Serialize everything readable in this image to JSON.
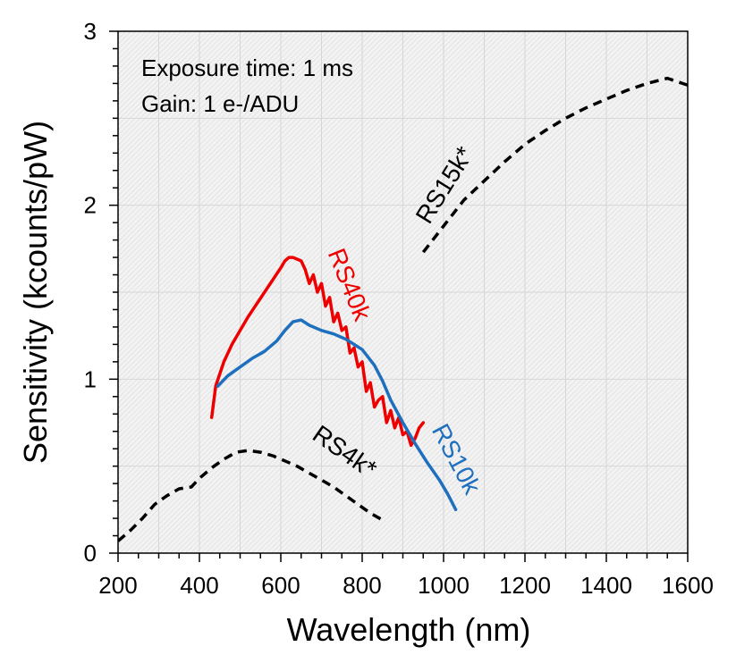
{
  "chart_data": {
    "type": "line",
    "title": "",
    "xlabel": "Wavelength (nm)",
    "ylabel": "Sensitivity (kcounts/pW)",
    "xlim": [
      200,
      1600
    ],
    "ylim": [
      0,
      3
    ],
    "xticks": [
      "200",
      "400",
      "600",
      "800",
      "1000",
      "1200",
      "1400",
      "1600"
    ],
    "yticks": [
      "0",
      "1",
      "2",
      "3"
    ],
    "grid": true,
    "annotations": [
      "Exposure time: 1 ms",
      "Gain: 1 e-/ADU"
    ],
    "series": [
      {
        "name": "RS40k",
        "label": "RS40k",
        "color": "#ee0000",
        "dash": "solid",
        "x": [
          430,
          440,
          460,
          480,
          500,
          520,
          540,
          560,
          580,
          600,
          610,
          620,
          630,
          640,
          650,
          660,
          670,
          680,
          690,
          700,
          710,
          720,
          730,
          740,
          750,
          760,
          770,
          780,
          790,
          800,
          810,
          820,
          830,
          840,
          850,
          860,
          870,
          880,
          890,
          900,
          910,
          920,
          930,
          940,
          950
        ],
        "y": [
          0.78,
          0.96,
          1.1,
          1.2,
          1.28,
          1.36,
          1.43,
          1.5,
          1.57,
          1.64,
          1.68,
          1.7,
          1.7,
          1.69,
          1.68,
          1.63,
          1.55,
          1.6,
          1.5,
          1.55,
          1.42,
          1.47,
          1.33,
          1.38,
          1.28,
          1.3,
          1.15,
          1.18,
          1.07,
          1.1,
          0.93,
          0.98,
          0.84,
          0.88,
          0.9,
          0.75,
          0.82,
          0.72,
          0.78,
          0.68,
          0.7,
          0.62,
          0.66,
          0.72,
          0.75
        ]
      },
      {
        "name": "RS10k",
        "label": "RS10k",
        "color": "#1f6fbf",
        "dash": "solid",
        "x": [
          445,
          470,
          500,
          530,
          560,
          590,
          610,
          630,
          650,
          670,
          700,
          730,
          760,
          780,
          800,
          810,
          830,
          850,
          870,
          900,
          930,
          960,
          990,
          1010,
          1030
        ],
        "y": [
          0.96,
          1.02,
          1.07,
          1.12,
          1.16,
          1.22,
          1.28,
          1.33,
          1.34,
          1.31,
          1.28,
          1.26,
          1.23,
          1.2,
          1.17,
          1.14,
          1.08,
          0.99,
          0.88,
          0.75,
          0.63,
          0.52,
          0.42,
          0.34,
          0.25
        ]
      },
      {
        "name": "RS4k*",
        "label": "RS4k*",
        "color": "#000000",
        "dash": "dashed",
        "x": [
          200,
          230,
          260,
          290,
          320,
          350,
          380,
          400,
          430,
          460,
          490,
          520,
          550,
          580,
          610,
          640,
          670,
          700,
          730,
          760,
          790,
          820,
          850
        ],
        "y": [
          0.07,
          0.13,
          0.2,
          0.28,
          0.33,
          0.37,
          0.38,
          0.43,
          0.49,
          0.54,
          0.58,
          0.59,
          0.58,
          0.56,
          0.53,
          0.5,
          0.46,
          0.42,
          0.38,
          0.33,
          0.28,
          0.23,
          0.19
        ]
      },
      {
        "name": "RS15k*",
        "label": "RS15k*",
        "color": "#000000",
        "dash": "dashed",
        "x": [
          950,
          1000,
          1050,
          1100,
          1150,
          1200,
          1250,
          1300,
          1350,
          1400,
          1450,
          1500,
          1550,
          1600
        ],
        "y": [
          1.73,
          1.88,
          2.03,
          2.14,
          2.25,
          2.35,
          2.43,
          2.5,
          2.56,
          2.61,
          2.66,
          2.7,
          2.73,
          2.69
        ]
      }
    ]
  }
}
